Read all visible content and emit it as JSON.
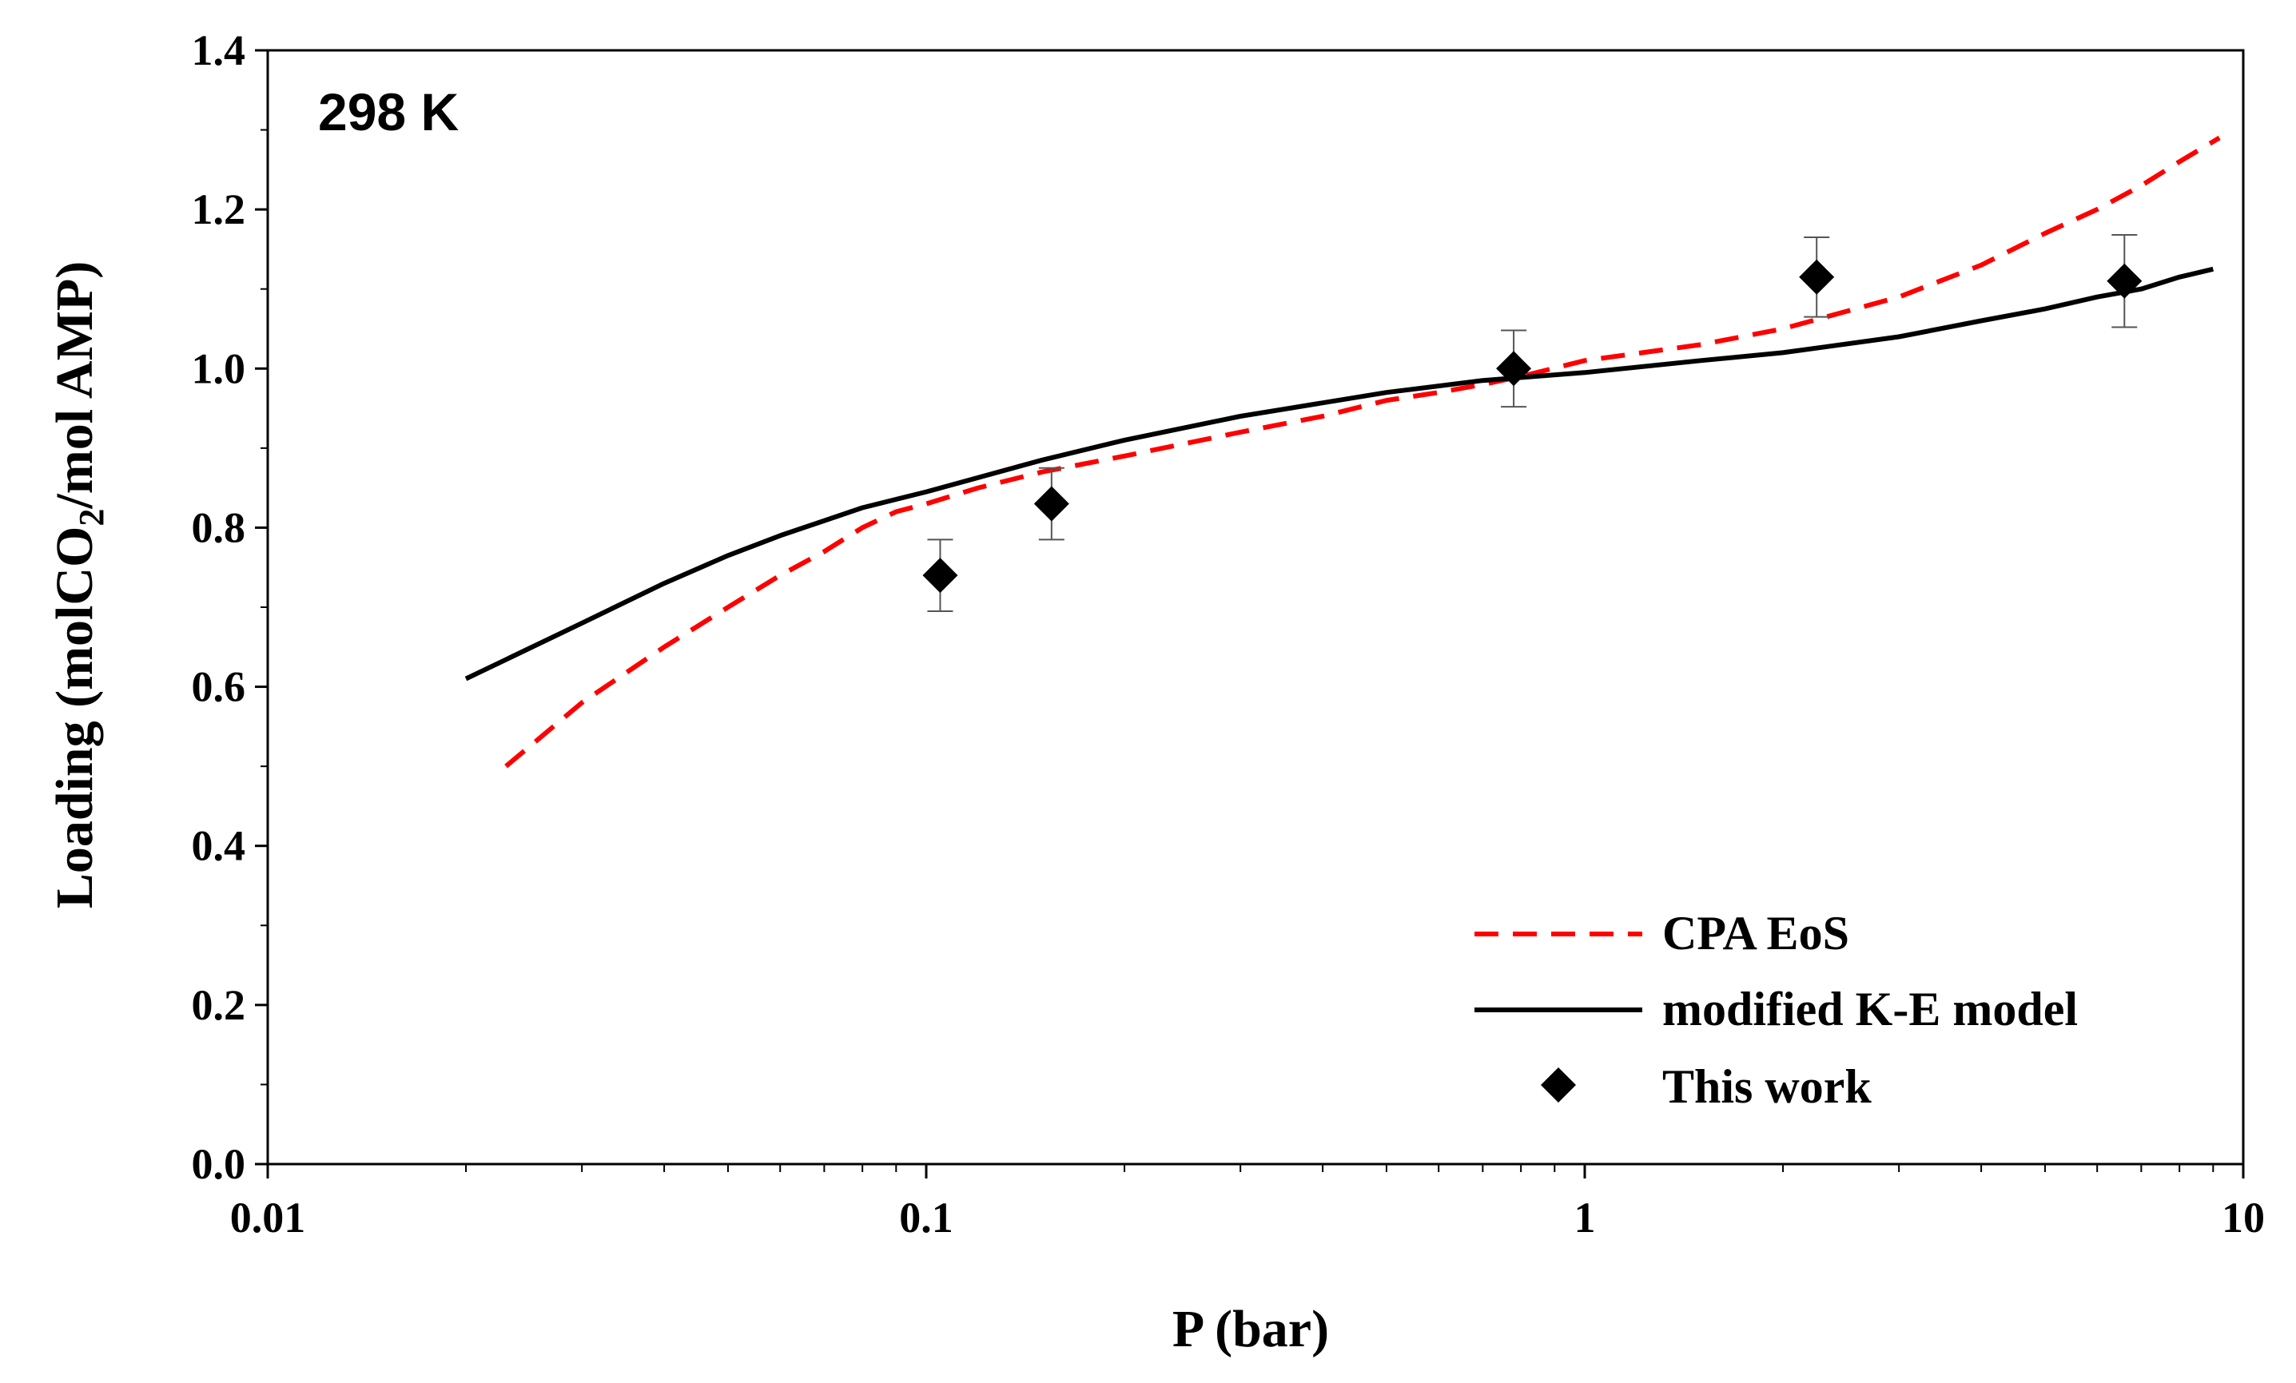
{
  "chart_data": {
    "type": "line",
    "title": "",
    "annotation": "298 K",
    "xlabel": "P (bar)",
    "ylabel": {
      "prefix": "Loading (molCO",
      "subscript": "2",
      "suffix": "/mol AMP)"
    },
    "xscale": "log",
    "xlim": [
      0.01,
      10
    ],
    "ylim": [
      0.0,
      1.4
    ],
    "x_ticks": [
      0.01,
      0.1,
      1,
      10
    ],
    "x_tick_labels": [
      "0.01",
      "0.1",
      "1",
      "10"
    ],
    "y_ticks": [
      0.0,
      0.2,
      0.4,
      0.6,
      0.8,
      1.0,
      1.2,
      1.4
    ],
    "y_tick_labels": [
      "0.0",
      "0.2",
      "0.4",
      "0.6",
      "0.8",
      "1.0",
      "1.2",
      "1.4"
    ],
    "grid": false,
    "legend_position": "bottom-right",
    "series": [
      {
        "name": "CPA EoS",
        "kind": "line",
        "style": "dashed",
        "color": "#ff0000",
        "x": [
          0.023,
          0.03,
          0.04,
          0.05,
          0.06,
          0.07,
          0.08,
          0.09,
          0.1,
          0.12,
          0.15,
          0.2,
          0.3,
          0.4,
          0.5,
          0.6,
          0.7,
          0.8,
          1.0,
          1.5,
          2.0,
          3.0,
          4.0,
          5.0,
          6.0,
          7.0,
          8.0,
          9.2
        ],
        "y": [
          0.5,
          0.58,
          0.65,
          0.7,
          0.74,
          0.77,
          0.8,
          0.82,
          0.83,
          0.85,
          0.87,
          0.89,
          0.92,
          0.94,
          0.96,
          0.97,
          0.98,
          0.99,
          1.01,
          1.03,
          1.05,
          1.09,
          1.13,
          1.17,
          1.2,
          1.23,
          1.26,
          1.29
        ]
      },
      {
        "name": "modified K-E model",
        "kind": "line",
        "style": "solid",
        "color": "#000000",
        "x": [
          0.02,
          0.03,
          0.04,
          0.05,
          0.06,
          0.08,
          0.1,
          0.15,
          0.2,
          0.3,
          0.5,
          0.7,
          1.0,
          1.5,
          2.0,
          3.0,
          4.0,
          5.0,
          6.0,
          7.0,
          8.0,
          9.0
        ],
        "y": [
          0.61,
          0.68,
          0.73,
          0.765,
          0.79,
          0.825,
          0.845,
          0.885,
          0.91,
          0.94,
          0.97,
          0.985,
          0.995,
          1.01,
          1.02,
          1.04,
          1.06,
          1.075,
          1.09,
          1.1,
          1.115,
          1.125
        ]
      },
      {
        "name": "This work",
        "kind": "scatter",
        "marker": "diamond",
        "color": "#000000",
        "x": [
          0.105,
          0.155,
          0.78,
          2.25,
          6.6
        ],
        "y": [
          0.74,
          0.83,
          1.0,
          1.115,
          1.11
        ],
        "error": [
          0.045,
          0.045,
          0.048,
          0.05,
          0.058
        ]
      }
    ]
  }
}
